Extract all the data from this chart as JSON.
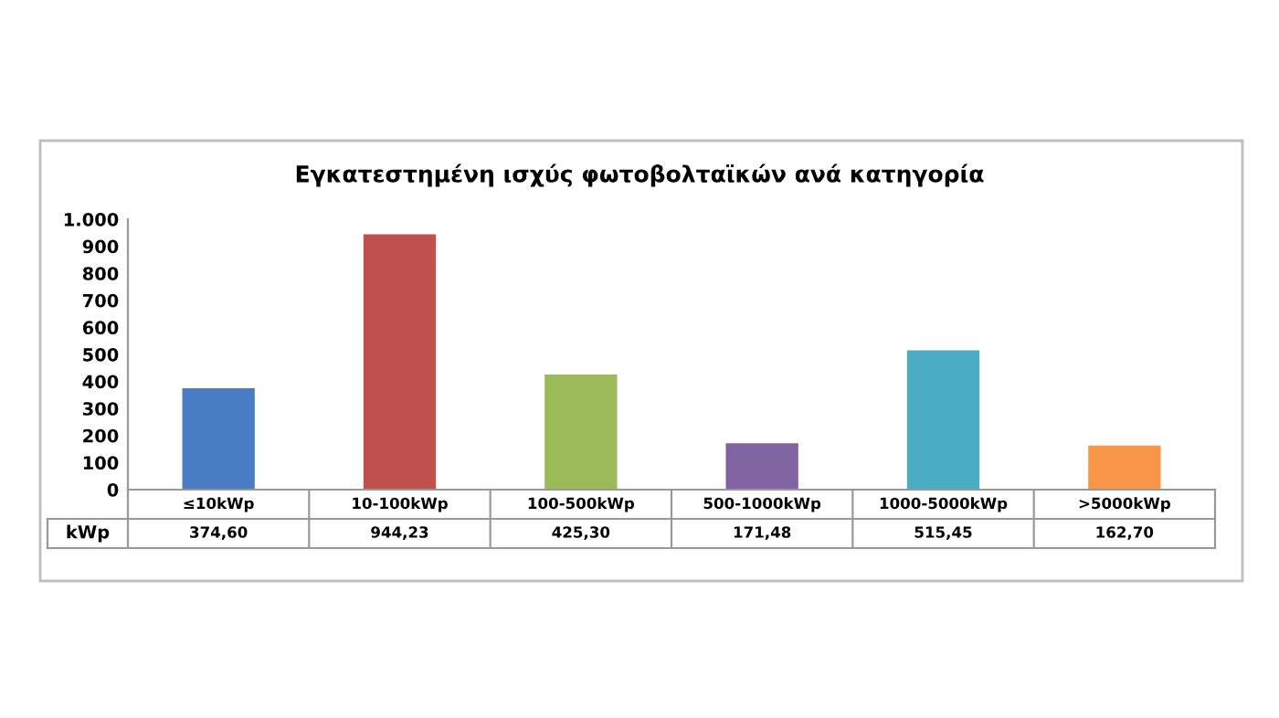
{
  "chart_data": {
    "type": "bar",
    "title": "Εγκατεστημένη ισχύς φωτοβολταϊκών ανά κατηγορία",
    "categories": [
      "≤10kWp",
      "10-100kWp",
      "100-500kWp",
      "500-1000kWp",
      "1000-5000kWp",
      ">5000kWp"
    ],
    "series": [
      {
        "name": "kWp",
        "values": [
          374.6,
          944.23,
          425.3,
          171.48,
          515.45,
          162.7
        ],
        "colors": [
          "#4a7cc4",
          "#c0504d",
          "#9bbb59",
          "#8064a2",
          "#4bacc6",
          "#f79646"
        ],
        "value_labels": [
          "374,60",
          "944,23",
          "425,30",
          "171,48",
          "515,45",
          "162,70"
        ]
      }
    ],
    "ylim": [
      0,
      1000
    ],
    "yticks": [
      0,
      100,
      200,
      300,
      400,
      500,
      600,
      700,
      800,
      900,
      {
        "value": 1000,
        "label": "1.000"
      }
    ],
    "grid": false,
    "legend": false
  }
}
